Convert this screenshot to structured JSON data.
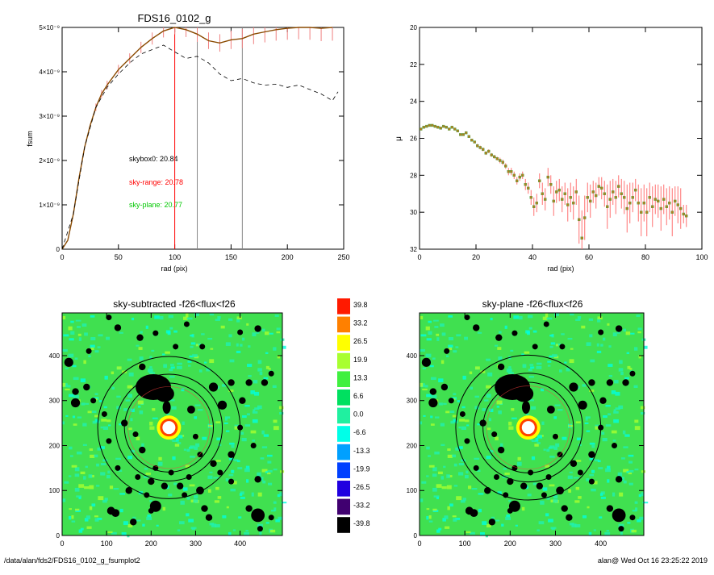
{
  "footer": {
    "path": "/data/alan/fds2/FDS16_0102_g_fsumplot2",
    "stamp": "alan@  Wed Oct 16 23:25:22 2019"
  },
  "colors": {
    "red": "#ff0000",
    "green": "#00c800",
    "black": "#000000",
    "gray": "#888888"
  },
  "chart_data": [
    {
      "type": "line",
      "title": "FDS16_0102_g",
      "xlabel": "rad (pix)",
      "ylabel": "fsum",
      "xlim": [
        0,
        250
      ],
      "ylim": [
        0,
        5e-09
      ],
      "x_ticks": [
        "0",
        "50",
        "100",
        "150",
        "200",
        "250"
      ],
      "x_tick_values": [
        0,
        50,
        100,
        150,
        200,
        250
      ],
      "y_ticks": [
        "0",
        "1×10⁻⁹",
        "2×10⁻⁹",
        "3×10⁻⁹",
        "4×10⁻⁹",
        "5×10⁻⁹"
      ],
      "y_tick_values": [
        0,
        1e-09,
        2e-09,
        3e-09,
        4e-09,
        5e-09
      ],
      "vlines": [
        {
          "x": 100,
          "color": "red"
        },
        {
          "x": 120,
          "color": "gray"
        },
        {
          "x": 160,
          "color": "gray"
        }
      ],
      "annotations": [
        {
          "text": "skybox0: 20.84",
          "color": "black"
        },
        {
          "text": "sky-range: 20.78",
          "color": "red"
        },
        {
          "text": "sky-plane: 20.77",
          "color": "green"
        }
      ],
      "series": [
        {
          "line": "solid",
          "errorbars": true,
          "x": [
            0,
            5,
            10,
            15,
            20,
            25,
            30,
            35,
            40,
            50,
            60,
            70,
            80,
            90,
            100,
            110,
            120,
            130,
            140,
            150,
            160,
            170,
            180,
            190,
            200,
            210,
            220,
            230,
            240
          ],
          "y": [
            0,
            2e-10,
            8e-10,
            1.6e-09,
            2.3e-09,
            2.8e-09,
            3.2e-09,
            3.5e-09,
            3.7e-09,
            4.05e-09,
            4.3e-09,
            4.55e-09,
            4.75e-09,
            4.92e-09,
            5e-09,
            4.95e-09,
            4.85e-09,
            4.7e-09,
            4.65e-09,
            4.72e-09,
            4.75e-09,
            4.85e-09,
            4.9e-09,
            4.95e-09,
            4.98e-09,
            5e-09,
            5e-09,
            4.98e-09,
            5e-09
          ]
        },
        {
          "line": "dashed",
          "errorbars": false,
          "x": [
            0,
            10,
            20,
            30,
            40,
            50,
            60,
            70,
            80,
            90,
            100,
            110,
            120,
            130,
            140,
            150,
            160,
            170,
            180,
            190,
            200,
            210,
            220,
            230,
            240,
            245
          ],
          "y": [
            0,
            8e-10,
            2.3e-09,
            3.2e-09,
            3.65e-09,
            3.95e-09,
            4.2e-09,
            4.4e-09,
            4.5e-09,
            4.6e-09,
            4.45e-09,
            4.3e-09,
            4.35e-09,
            4.2e-09,
            3.95e-09,
            3.8e-09,
            3.85e-09,
            3.75e-09,
            3.7e-09,
            3.72e-09,
            3.65e-09,
            3.7e-09,
            3.6e-09,
            3.5e-09,
            3.35e-09,
            3.55e-09
          ]
        }
      ]
    },
    {
      "type": "scatter",
      "title": "",
      "xlabel": "rad (pix)",
      "ylabel": "μ",
      "xlim": [
        0,
        100
      ],
      "ylim": [
        32,
        20
      ],
      "x_ticks": [
        "0",
        "20",
        "40",
        "60",
        "80",
        "100"
      ],
      "x_tick_values": [
        0,
        20,
        40,
        60,
        80,
        100
      ],
      "y_ticks": [
        "20",
        "22",
        "24",
        "26",
        "28",
        "30",
        "32"
      ],
      "y_tick_values": [
        20,
        22,
        24,
        26,
        28,
        30,
        32
      ],
      "series": [
        {
          "x": [
            0.5,
            1.5,
            2.5,
            3.5,
            4.5,
            5.5,
            6.5,
            7.5,
            8.5,
            9.5,
            10.5,
            11.5,
            12.5,
            13.5,
            14.5,
            15.5,
            16.5,
            17.5,
            18.5,
            19.5,
            20.5,
            21.5,
            22.5,
            23.5,
            24.5,
            25.5,
            26.5,
            27.5,
            28.5,
            29.5,
            30.5,
            31.5,
            32.5,
            33.5,
            34.5,
            35.5,
            36.5,
            37.5,
            38.5,
            39.5,
            40.5,
            41.5,
            42.5,
            43.5,
            44.5,
            45.5,
            46.5,
            47.5,
            48.5,
            49.5,
            50.5,
            51.5,
            52.5,
            53.5,
            54.5,
            55.5,
            56.5,
            57.5,
            58.5,
            59.5,
            60.5,
            61.5,
            62.5,
            63.5,
            64.5,
            65.5,
            66.5,
            67.5,
            68.5,
            69.5,
            70.5,
            71.5,
            72.5,
            73.5,
            74.5,
            75.5,
            76.5,
            77.5,
            78.5,
            79.5,
            80.5,
            81.5,
            82.5,
            83.5,
            84.5,
            85.5,
            86.5,
            87.5,
            88.5,
            89.5,
            90.5,
            91.5,
            92.5,
            93.5,
            94.5
          ],
          "y": [
            25.5,
            25.4,
            25.35,
            25.3,
            25.3,
            25.35,
            25.4,
            25.45,
            25.35,
            25.4,
            25.5,
            25.4,
            25.5,
            25.6,
            25.8,
            25.8,
            25.7,
            25.9,
            26.1,
            26.2,
            26.4,
            26.5,
            26.6,
            26.8,
            26.7,
            26.9,
            27.0,
            27.1,
            27.2,
            27.3,
            27.5,
            27.8,
            27.8,
            28.0,
            28.3,
            28.1,
            28.0,
            28.5,
            28.7,
            29.2,
            29.7,
            29.5,
            28.3,
            29.0,
            29.3,
            28.1,
            28.5,
            29.4,
            28.9,
            28.8,
            29.3,
            29.0,
            29.6,
            29.2,
            29.5,
            28.9,
            30.4,
            31.4,
            30.3,
            29.2,
            29.4,
            28.9,
            29.1,
            28.6,
            28.7,
            29.0,
            29.7,
            29.3,
            28.9,
            29.2,
            28.6,
            29.0,
            29.2,
            29.8,
            29.5,
            29.2,
            28.8,
            29.5,
            30.0,
            29.5,
            30.0,
            29.2,
            29.7,
            29.3,
            29.4,
            29.8,
            29.3,
            29.7,
            29.5,
            30.0,
            29.4,
            29.6,
            29.8,
            30.1,
            30.2
          ],
          "err": [
            0.05,
            0.05,
            0.05,
            0.05,
            0.05,
            0.05,
            0.05,
            0.05,
            0.05,
            0.05,
            0.05,
            0.05,
            0.05,
            0.05,
            0.05,
            0.05,
            0.05,
            0.05,
            0.05,
            0.05,
            0.1,
            0.1,
            0.1,
            0.1,
            0.1,
            0.1,
            0.1,
            0.1,
            0.15,
            0.15,
            0.15,
            0.2,
            0.2,
            0.2,
            0.2,
            0.2,
            0.2,
            0.3,
            0.3,
            0.4,
            0.5,
            0.5,
            0.4,
            0.6,
            0.6,
            0.5,
            0.5,
            0.8,
            0.6,
            0.6,
            0.7,
            0.6,
            0.9,
            0.8,
            0.9,
            0.7,
            1.3,
            1.5,
            1.2,
            0.8,
            0.9,
            0.6,
            0.7,
            0.5,
            0.6,
            0.7,
            1.2,
            1.0,
            0.7,
            0.9,
            0.6,
            0.8,
            0.9,
            1.3,
            1.1,
            0.8,
            0.6,
            1.0,
            1.3,
            1.0,
            1.3,
            0.8,
            1.1,
            0.8,
            0.9,
            1.2,
            0.8,
            1.0,
            0.9,
            1.3,
            0.8,
            1.0,
            1.1,
            0.5,
            0.6
          ]
        }
      ]
    },
    {
      "type": "heatmap",
      "title": "sky-subtracted -f26<flux<f26",
      "xlim": [
        0,
        495
      ],
      "ylim": [
        0,
        495
      ],
      "x_ticks": [
        "0",
        "100",
        "200",
        "300",
        "400"
      ],
      "x_tick_values": [
        0,
        100,
        200,
        300,
        400
      ],
      "y_ticks": [
        "0",
        "100",
        "200",
        "300",
        "400"
      ],
      "y_tick_values": [
        0,
        100,
        200,
        300,
        400
      ],
      "center": [
        240,
        240
      ],
      "rings": [
        100,
        120,
        160
      ]
    },
    {
      "type": "heatmap",
      "title": "sky-plane -f26<flux<f26",
      "xlim": [
        0,
        495
      ],
      "ylim": [
        0,
        495
      ],
      "x_ticks": [
        "0",
        "100",
        "200",
        "300",
        "400"
      ],
      "x_tick_values": [
        0,
        100,
        200,
        300,
        400
      ],
      "y_ticks": [
        "0",
        "100",
        "200",
        "300",
        "400"
      ],
      "y_tick_values": [
        0,
        100,
        200,
        300,
        400
      ],
      "center": [
        240,
        240
      ],
      "rings": [
        100,
        120,
        160
      ]
    },
    {
      "type": "table",
      "colorbar_labels": [
        "39.8",
        "33.2",
        "26.5",
        "19.9",
        "13.3",
        "6.6",
        "0.0",
        "-6.6",
        "-13.3",
        "-19.9",
        "-26.5",
        "-33.2",
        "-39.8"
      ],
      "colorbar_colors": [
        "#ff1a00",
        "#ff8000",
        "#ffff00",
        "#a8ff30",
        "#40f040",
        "#00e060",
        "#20f0a0",
        "#00ffe8",
        "#00a0ff",
        "#0040ff",
        "#2000e0",
        "#400070",
        "#000000"
      ]
    }
  ]
}
